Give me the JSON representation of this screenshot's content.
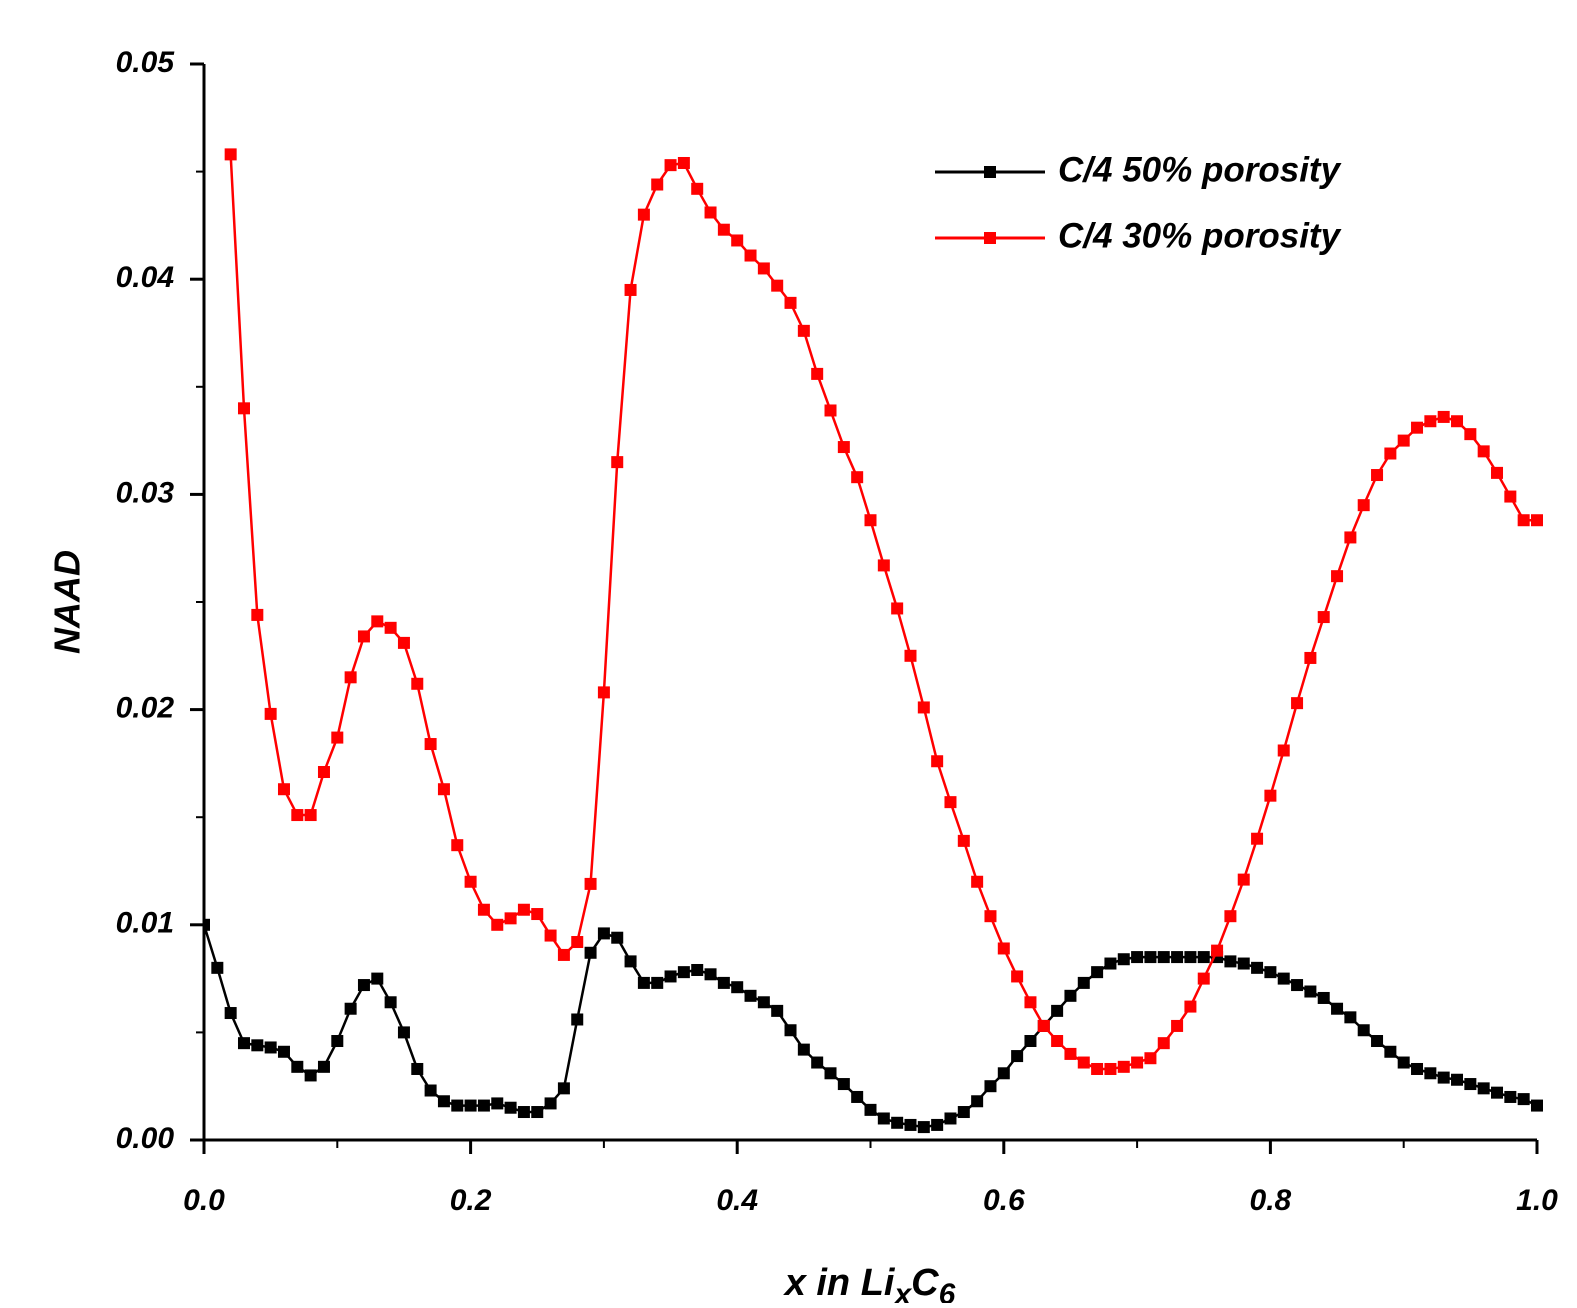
{
  "chart_data": {
    "type": "line",
    "xlabel": [
      {
        "text": "x in Li"
      },
      {
        "text": "x",
        "sub": true
      },
      {
        "text": "C"
      },
      {
        "text": "6",
        "sub": true
      }
    ],
    "ylabel": "NAAD",
    "x": [
      0,
      0.01,
      0.02,
      0.03,
      0.04,
      0.05,
      0.06,
      0.07,
      0.08,
      0.09,
      0.1,
      0.11,
      0.12,
      0.13,
      0.14,
      0.15,
      0.16,
      0.17,
      0.18,
      0.19,
      0.2,
      0.21,
      0.22,
      0.23,
      0.24,
      0.25,
      0.26,
      0.27,
      0.28,
      0.29,
      0.3,
      0.31,
      0.32,
      0.33,
      0.34,
      0.35,
      0.36,
      0.37,
      0.38,
      0.39,
      0.4,
      0.41,
      0.42,
      0.43,
      0.44,
      0.45,
      0.46,
      0.47,
      0.48,
      0.49,
      0.5,
      0.51,
      0.52,
      0.53,
      0.54,
      0.55,
      0.56,
      0.57,
      0.58,
      0.59,
      0.6,
      0.61,
      0.62,
      0.63,
      0.64,
      0.65,
      0.66,
      0.67,
      0.68,
      0.69,
      0.7,
      0.71,
      0.72,
      0.73,
      0.74,
      0.75,
      0.76,
      0.77,
      0.78,
      0.79,
      0.8,
      0.81,
      0.82,
      0.83,
      0.84,
      0.85,
      0.86,
      0.87,
      0.88,
      0.89,
      0.9,
      0.91,
      0.92,
      0.93,
      0.94,
      0.95,
      0.96,
      0.97,
      0.98,
      0.99,
      1.0
    ],
    "series": [
      {
        "name": "C/4 50% porosity",
        "color": "#000000",
        "values": [
          0.01,
          0.008,
          0.0059,
          0.0045,
          0.0044,
          0.0043,
          0.0041,
          0.0034,
          0.003,
          0.0034,
          0.0046,
          0.0061,
          0.0072,
          0.0075,
          0.0064,
          0.005,
          0.0033,
          0.0023,
          0.0018,
          0.0016,
          0.0016,
          0.0016,
          0.0017,
          0.0015,
          0.0013,
          0.0013,
          0.0017,
          0.0024,
          0.0056,
          0.0087,
          0.0096,
          0.0094,
          0.0083,
          0.0073,
          0.0073,
          0.0076,
          0.0078,
          0.0079,
          0.0077,
          0.0073,
          0.0071,
          0.0067,
          0.0064,
          0.006,
          0.0051,
          0.0042,
          0.0036,
          0.0031,
          0.0026,
          0.002,
          0.0014,
          0.001,
          0.0008,
          0.0007,
          0.0006,
          0.0007,
          0.001,
          0.0013,
          0.0018,
          0.0025,
          0.0031,
          0.0039,
          0.0046,
          0.0053,
          0.006,
          0.0067,
          0.0073,
          0.0078,
          0.0082,
          0.0084,
          0.0085,
          0.0085,
          0.0085,
          0.0085,
          0.0085,
          0.0085,
          0.0085,
          0.0083,
          0.0082,
          0.008,
          0.0078,
          0.0075,
          0.0072,
          0.0069,
          0.0066,
          0.0061,
          0.0057,
          0.0051,
          0.0046,
          0.0041,
          0.0036,
          0.0033,
          0.0031,
          0.0029,
          0.0028,
          0.0026,
          0.0024,
          0.0022,
          0.002,
          0.0019,
          0.0016
        ]
      },
      {
        "name": "C/4 30% porosity",
        "color": "#ff0000",
        "values": [
          null,
          null,
          0.0458,
          0.034,
          0.0244,
          0.0198,
          0.0163,
          0.0151,
          0.0151,
          0.0171,
          0.0187,
          0.0215,
          0.0234,
          0.0241,
          0.0238,
          0.0231,
          0.0212,
          0.0184,
          0.0163,
          0.0137,
          0.012,
          0.0107,
          0.01,
          0.0103,
          0.0107,
          0.0105,
          0.0095,
          0.0086,
          0.0092,
          0.0119,
          0.0208,
          0.0315,
          0.0395,
          0.043,
          0.0444,
          0.0453,
          0.0454,
          0.0442,
          0.0431,
          0.0423,
          0.0418,
          0.0411,
          0.0405,
          0.0397,
          0.0389,
          0.0376,
          0.0356,
          0.0339,
          0.0322,
          0.0308,
          0.0288,
          0.0267,
          0.0247,
          0.0225,
          0.0201,
          0.0176,
          0.0157,
          0.0139,
          0.012,
          0.0104,
          0.0089,
          0.0076,
          0.0064,
          0.0053,
          0.0046,
          0.004,
          0.0036,
          0.0033,
          0.0033,
          0.0034,
          0.0036,
          0.0038,
          0.0045,
          0.0053,
          0.0062,
          0.0075,
          0.0088,
          0.0104,
          0.0121,
          0.014,
          0.016,
          0.0181,
          0.0203,
          0.0224,
          0.0243,
          0.0262,
          0.028,
          0.0295,
          0.0309,
          0.0319,
          0.0325,
          0.0331,
          0.0334,
          0.0336,
          0.0334,
          0.0328,
          0.032,
          0.031,
          0.0299,
          0.0288,
          0.0288
        ]
      }
    ],
    "xlim": [
      0,
      1
    ],
    "ylim": [
      0,
      0.05
    ],
    "xticks": [
      {
        "value": 0,
        "label": "0.0"
      },
      {
        "value": 0.2,
        "label": "0.2"
      },
      {
        "value": 0.4,
        "label": "0.4"
      },
      {
        "value": 0.6,
        "label": "0.6"
      },
      {
        "value": 0.8,
        "label": "0.8"
      },
      {
        "value": 1,
        "label": "1.0"
      }
    ],
    "yticks": [
      {
        "value": 0,
        "label": "0.00"
      },
      {
        "value": 0.01,
        "label": "0.01"
      },
      {
        "value": 0.02,
        "label": "0.02"
      },
      {
        "value": 0.03,
        "label": "0.03"
      },
      {
        "value": 0.04,
        "label": "0.04"
      },
      {
        "value": 0.05,
        "label": "0.05"
      }
    ],
    "xminorticks": [
      0.1,
      0.3,
      0.5,
      0.7,
      0.9
    ],
    "yminorticks": [
      0.005,
      0.015,
      0.025,
      0.035,
      0.045
    ],
    "legend": "upper right",
    "grid": false
  }
}
